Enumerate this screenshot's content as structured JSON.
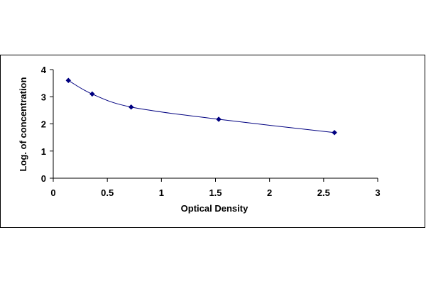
{
  "chart_data": {
    "type": "scatter",
    "xlabel": "Optical Density",
    "ylabel": "Log. of concentration",
    "xlim": [
      0,
      3
    ],
    "ylim": [
      0,
      4
    ],
    "xticks": [
      "0",
      "0.5",
      "1",
      "1.5",
      "2",
      "2.5",
      "3"
    ],
    "yticks": [
      "0",
      "1",
      "2",
      "3",
      "4"
    ],
    "grid": false,
    "legend": "none",
    "series": [
      {
        "marker": "diamond",
        "color": "#000080",
        "line": "smooth",
        "x": [
          0.14,
          0.36,
          0.72,
          1.53,
          2.6
        ],
        "y": [
          3.6,
          3.1,
          2.62,
          2.17,
          1.68
        ]
      }
    ]
  }
}
